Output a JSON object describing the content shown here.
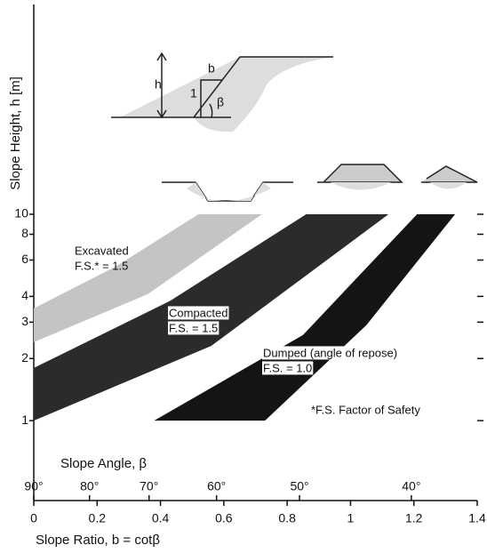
{
  "chart_data": {
    "type": "band",
    "ylabel": "Slope Height, h [m]",
    "xlabel": "Slope Ratio, b = cotβ",
    "x2label": "Slope Angle, β",
    "annotation": "*F.S. Factor of Safety",
    "sketch_labels": [
      "h",
      "b",
      "1",
      "β"
    ],
    "log_y": true,
    "ylim": [
      0.41,
      10
    ],
    "yticks": [
      1,
      2,
      3,
      4,
      6,
      8,
      10
    ],
    "xlim": [
      0,
      1.4
    ],
    "xticks": [
      0,
      0.2,
      0.4,
      0.6,
      0.8,
      1.0,
      1.2,
      1.4
    ],
    "x2ticks": [
      {
        "value": 0,
        "label": "90°"
      },
      {
        "value": 0.176,
        "label": "80°"
      },
      {
        "value": 0.364,
        "label": "70°"
      },
      {
        "value": 0.577,
        "label": "60°"
      },
      {
        "value": 0.839,
        "label": "50°"
      },
      {
        "value": 1.192,
        "label": "40°"
      }
    ],
    "series": [
      {
        "name": "Excavated",
        "note": "F.S.* = 1.5",
        "color": "#c4c4c4",
        "x": [
          0,
          0.26,
          0.52,
          0.72,
          0.36,
          0
        ],
        "values": [
          3.5,
          5.6,
          10,
          10,
          4.1,
          2.4
        ]
      },
      {
        "name": "Compacted",
        "note": "F.S. = 1.5",
        "color": "#2b2b2b",
        "x": [
          0,
          0.43,
          0.86,
          1.12,
          0.56,
          0
        ],
        "values": [
          1.8,
          3.8,
          10,
          10,
          2.3,
          1.0
        ]
      },
      {
        "name": "Dumped (angle of repose)",
        "note": "F.S. = 1.0",
        "color": "#141414",
        "x": [
          0.38,
          0.85,
          1.21,
          1.33,
          1.05,
          0.73
        ],
        "values": [
          1,
          2.6,
          10,
          10,
          2.9,
          1
        ]
      }
    ]
  }
}
